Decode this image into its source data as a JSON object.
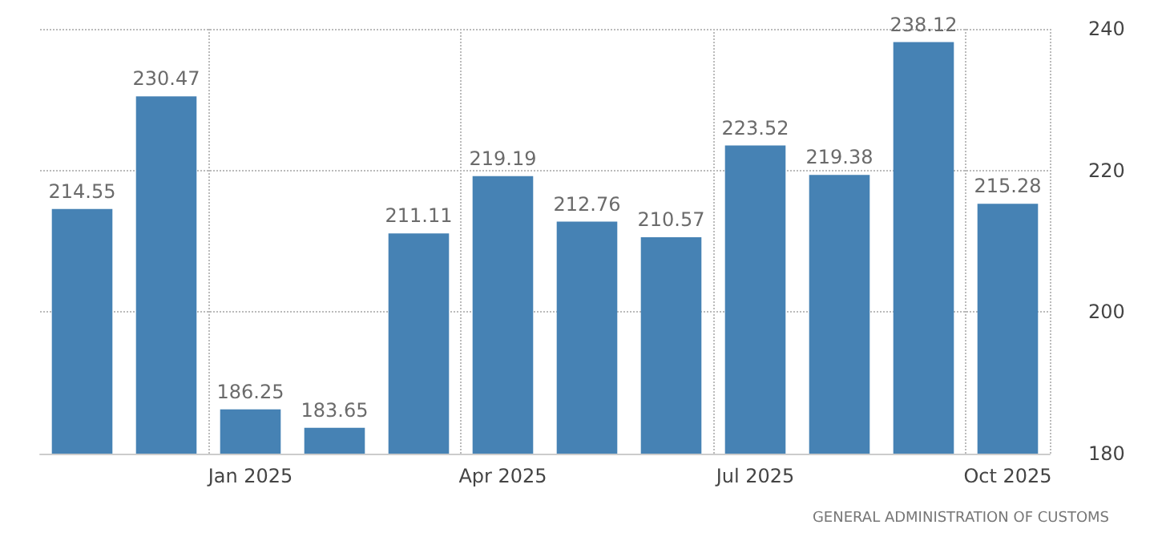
{
  "chart_data": {
    "type": "bar",
    "categories": [
      null,
      null,
      "Jan 2025",
      null,
      null,
      "Apr 2025",
      null,
      null,
      "Jul 2025",
      null,
      null,
      "Oct 2025"
    ],
    "values": [
      214.55,
      230.47,
      186.25,
      183.65,
      211.11,
      219.19,
      212.76,
      210.57,
      223.52,
      219.38,
      238.12,
      215.28
    ],
    "color": "#4682b4",
    "ylim": [
      180,
      240
    ],
    "yticks": [
      180,
      200,
      220,
      240
    ],
    "grid": true,
    "data_labels": true,
    "annotations": [
      "GENERAL ADMINISTRATION OF CUSTOMS"
    ]
  }
}
